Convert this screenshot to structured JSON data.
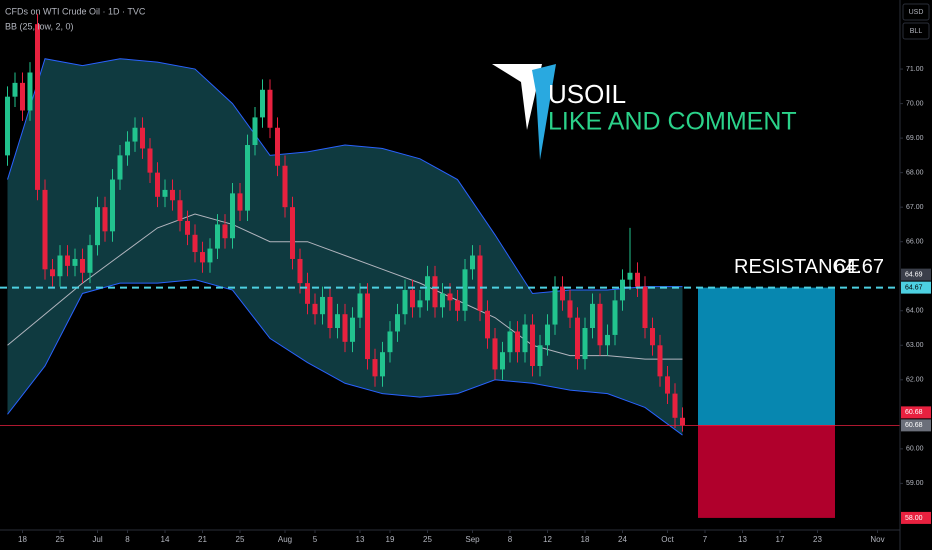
{
  "chart_data": {
    "type": "candlestick",
    "title": "CFDs on WTI Crude Oil · 1D · TVC",
    "currency": "USD",
    "unit": "BLL",
    "logo_title": "USOIL",
    "logo_subtitle": "LIKE AND COMMENT",
    "up_color": "#22c38e",
    "down_color": "#e8213f",
    "xlim": [
      -1,
      119
    ],
    "ylim": [
      57.65,
      73.0
    ],
    "xticks": [
      {
        "value": 2,
        "label": "18"
      },
      {
        "value": 7,
        "label": "25"
      },
      {
        "value": 12,
        "label": "Jul"
      },
      {
        "value": 16,
        "label": "8"
      },
      {
        "value": 21,
        "label": "14"
      },
      {
        "value": 26,
        "label": "21"
      },
      {
        "value": 31,
        "label": "25"
      },
      {
        "value": 37,
        "label": "Aug"
      },
      {
        "value": 41,
        "label": "5"
      },
      {
        "value": 47,
        "label": "13"
      },
      {
        "value": 51,
        "label": "19"
      },
      {
        "value": 56,
        "label": "25"
      },
      {
        "value": 62,
        "label": "Sep"
      },
      {
        "value": 67,
        "label": "8"
      },
      {
        "value": 72,
        "label": "12"
      },
      {
        "value": 77,
        "label": "18"
      },
      {
        "value": 82,
        "label": "24"
      },
      {
        "value": 88,
        "label": "Oct"
      },
      {
        "value": 93,
        "label": "7"
      },
      {
        "value": 98,
        "label": "13"
      },
      {
        "value": 103,
        "label": "17"
      },
      {
        "value": 108,
        "label": "23"
      },
      {
        "value": 116,
        "label": "Nov"
      }
    ],
    "yticks": [
      {
        "value": 71,
        "label": "71.00"
      },
      {
        "value": 70,
        "label": "70.00"
      },
      {
        "value": 69,
        "label": "69.00"
      },
      {
        "value": 68,
        "label": "68.00"
      },
      {
        "value": 67,
        "label": "67.00"
      },
      {
        "value": 66,
        "label": "66.00"
      },
      {
        "value": 64,
        "label": "64.00"
      },
      {
        "value": 63,
        "label": "63.00"
      },
      {
        "value": 62,
        "label": "62.00"
      },
      {
        "value": 60,
        "label": "60.00"
      },
      {
        "value": 59,
        "label": "59.00"
      }
    ],
    "open": [
      68.5,
      70.2,
      70.6,
      69.8,
      72.3,
      67.5,
      65.2,
      65.0,
      65.6,
      65.3,
      65.5,
      65.1,
      65.9,
      67.0,
      66.3,
      67.8,
      68.5,
      68.9,
      69.3,
      68.7,
      68.0,
      67.3,
      67.5,
      67.2,
      66.6,
      66.2,
      65.7,
      65.4,
      65.8,
      66.5,
      66.1,
      67.4,
      66.9,
      68.8,
      69.6,
      70.4,
      69.3,
      68.2,
      67.0,
      65.5,
      64.8,
      64.2,
      63.9,
      64.4,
      63.5,
      63.9,
      63.1,
      63.8,
      64.5,
      62.6,
      62.1,
      62.8,
      63.4,
      63.9,
      64.6,
      64.1,
      64.3,
      65.0,
      64.1,
      64.5,
      64.3,
      64.0,
      65.2,
      65.6,
      64.0,
      63.2,
      62.3,
      62.8,
      63.4,
      62.8,
      63.6,
      62.4,
      63.0,
      63.6,
      64.7,
      64.3,
      63.8,
      62.6,
      63.5,
      64.2,
      63.0,
      63.3,
      64.3,
      64.9,
      65.1,
      64.7,
      63.5,
      63.0,
      62.1,
      61.6,
      60.9
    ],
    "high": [
      70.5,
      70.9,
      70.9,
      71.2,
      72.6,
      67.8,
      65.5,
      65.9,
      65.9,
      65.8,
      65.8,
      66.2,
      67.3,
      67.3,
      68.1,
      68.8,
      69.2,
      69.6,
      69.6,
      69.0,
      68.3,
      67.8,
      67.8,
      67.5,
      66.9,
      66.5,
      66.0,
      66.1,
      66.8,
      66.8,
      67.7,
      67.7,
      69.1,
      69.9,
      70.7,
      70.7,
      69.6,
      68.5,
      67.3,
      65.8,
      65.1,
      64.5,
      64.7,
      64.7,
      64.2,
      64.2,
      64.1,
      64.8,
      64.8,
      62.9,
      63.1,
      63.7,
      64.2,
      64.9,
      64.9,
      64.6,
      65.3,
      65.3,
      64.8,
      64.8,
      64.6,
      65.5,
      65.9,
      65.9,
      64.3,
      63.5,
      63.1,
      63.7,
      63.7,
      63.9,
      63.9,
      63.3,
      63.9,
      65.0,
      65.0,
      64.6,
      64.1,
      63.8,
      64.5,
      64.5,
      63.6,
      64.6,
      65.2,
      66.4,
      65.4,
      65.0,
      63.8,
      63.3,
      62.4,
      61.9,
      61.2
    ],
    "low": [
      68.2,
      69.9,
      69.5,
      69.5,
      67.2,
      64.9,
      64.7,
      64.7,
      65.0,
      65.0,
      64.8,
      64.8,
      65.6,
      66.0,
      66.0,
      67.5,
      68.2,
      68.6,
      68.4,
      67.7,
      67.0,
      67.0,
      66.9,
      66.3,
      65.9,
      65.4,
      65.1,
      65.1,
      65.5,
      65.8,
      65.8,
      66.6,
      66.6,
      68.5,
      69.3,
      69.0,
      67.9,
      66.7,
      65.2,
      64.5,
      63.9,
      63.6,
      63.6,
      63.2,
      63.2,
      62.8,
      62.8,
      63.5,
      62.3,
      61.8,
      61.8,
      62.5,
      63.1,
      63.6,
      63.8,
      63.8,
      64.0,
      63.8,
      63.8,
      64.0,
      63.7,
      63.7,
      64.9,
      63.7,
      62.9,
      62.0,
      62.0,
      62.5,
      62.5,
      62.5,
      62.1,
      62.1,
      62.7,
      63.3,
      64.0,
      63.5,
      62.3,
      62.3,
      63.2,
      62.7,
      62.7,
      63.0,
      64.0,
      64.6,
      64.4,
      63.2,
      62.7,
      61.8,
      61.3,
      60.6,
      60.5
    ],
    "close": [
      70.2,
      70.6,
      69.8,
      70.9,
      67.5,
      65.2,
      65.0,
      65.6,
      65.3,
      65.5,
      65.1,
      65.9,
      67.0,
      66.3,
      67.8,
      68.5,
      68.9,
      69.3,
      68.7,
      68.0,
      67.3,
      67.5,
      67.2,
      66.6,
      66.2,
      65.7,
      65.4,
      65.8,
      66.5,
      66.1,
      67.4,
      66.9,
      68.8,
      69.6,
      70.4,
      69.3,
      68.2,
      67.0,
      65.5,
      64.8,
      64.2,
      63.9,
      64.4,
      63.5,
      63.9,
      63.1,
      63.8,
      64.5,
      62.6,
      62.1,
      62.8,
      63.4,
      63.9,
      64.6,
      64.1,
      64.3,
      65.0,
      64.1,
      64.5,
      64.3,
      64.0,
      65.2,
      65.6,
      64.0,
      63.2,
      62.3,
      62.8,
      63.4,
      62.8,
      63.6,
      62.4,
      63.0,
      63.6,
      64.7,
      64.3,
      63.8,
      62.6,
      63.5,
      64.2,
      63.0,
      63.3,
      64.3,
      64.9,
      65.1,
      64.7,
      63.5,
      63.0,
      62.1,
      61.6,
      60.9,
      60.68
    ],
    "indicator": {
      "label": "BB (25, low, 2, 0)",
      "band_color": "#2962ff",
      "middle_color": "#b2b5be",
      "fill": "#0f3a40",
      "x": [
        0,
        5,
        10,
        15,
        20,
        25,
        30,
        35,
        40,
        45,
        50,
        55,
        60,
        65,
        70,
        75,
        80,
        85,
        90
      ],
      "upper": [
        67.8,
        71.3,
        71.1,
        71.3,
        71.2,
        71.0,
        70.0,
        68.5,
        68.6,
        68.8,
        68.7,
        68.4,
        67.8,
        66.2,
        64.5,
        64.6,
        64.6,
        64.7,
        64.7
      ],
      "middle": [
        63.0,
        63.9,
        64.8,
        65.6,
        66.4,
        66.8,
        66.5,
        66.0,
        66.0,
        65.6,
        65.2,
        64.8,
        64.3,
        63.8,
        63.0,
        62.7,
        62.7,
        62.6,
        62.6
      ],
      "lower": [
        61.0,
        62.4,
        64.5,
        64.8,
        64.8,
        64.9,
        64.6,
        63.2,
        62.5,
        61.9,
        61.6,
        61.5,
        61.6,
        62.0,
        61.9,
        61.7,
        61.6,
        61.2,
        60.4
      ]
    },
    "resistance": {
      "label": "RESISTANCE",
      "value": 64.67,
      "color": "#4dd0e1"
    },
    "position": {
      "target": 64.67,
      "entry": 60.68,
      "stop": 58.0,
      "profit_color": "#0787b0",
      "loss_color": "#b0002c"
    },
    "price_labels": [
      {
        "value": 64.69,
        "color": "#3b3f4a"
      },
      {
        "value": 64.67,
        "color": "#4dd0e1"
      },
      {
        "value": 60.68,
        "color": "#e8213f",
        "line": true
      },
      {
        "value": 60.68,
        "color": "#6b6f7a"
      },
      {
        "value": 58.0,
        "label": "58.00",
        "color": "#e8213f"
      }
    ]
  }
}
